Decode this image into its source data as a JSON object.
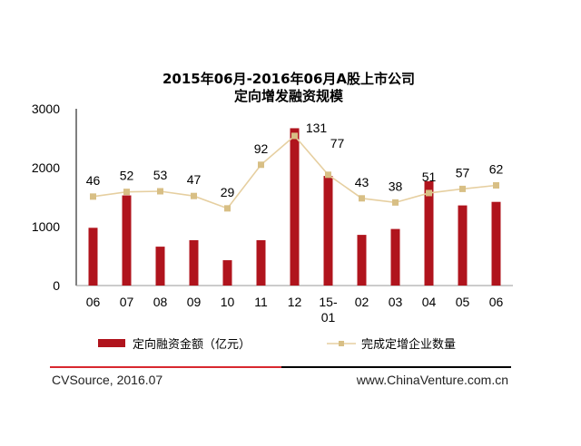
{
  "chart_data": {
    "type": "bar",
    "title": [
      "2015年06月-2016年06月A股上市公司",
      "定向增发融资规模"
    ],
    "categories": [
      "06",
      "07",
      "08",
      "09",
      "10",
      "11",
      "12",
      "15-\n01",
      "02",
      "03",
      "04",
      "05",
      "06"
    ],
    "category_lines": [
      [
        "06"
      ],
      [
        "07"
      ],
      [
        "08"
      ],
      [
        "09"
      ],
      [
        "10"
      ],
      [
        "11"
      ],
      [
        "12"
      ],
      [
        "15-",
        "01"
      ],
      [
        "02"
      ],
      [
        "03"
      ],
      [
        "04"
      ],
      [
        "05"
      ],
      [
        "06"
      ]
    ],
    "ylim": [
      0,
      3000
    ],
    "yticks": [
      0,
      1000,
      2000,
      3000
    ],
    "xlabel": "",
    "ylabel": "",
    "series": [
      {
        "name": "定向融资金额（亿元）",
        "type": "bar",
        "color": "#b0141d",
        "values": [
          980,
          1530,
          660,
          770,
          430,
          770,
          2670,
          1860,
          860,
          960,
          1770,
          1360,
          1420
        ]
      },
      {
        "name": "完成定增企业数量",
        "type": "line",
        "color": "#e6cfa0",
        "marker_color": "#d8bf85",
        "counts": [
          46,
          52,
          53,
          47,
          29,
          92,
          131,
          77,
          43,
          38,
          51,
          57,
          62
        ],
        "plotted_values": [
          1510,
          1590,
          1600,
          1520,
          1310,
          2050,
          2540,
          1880,
          1480,
          1410,
          1570,
          1640,
          1700
        ]
      }
    ],
    "grid": false,
    "legend": "bottom"
  },
  "footer": {
    "source": "CVSource, 2016.07",
    "website": "www.ChinaVenture.com.cn"
  }
}
